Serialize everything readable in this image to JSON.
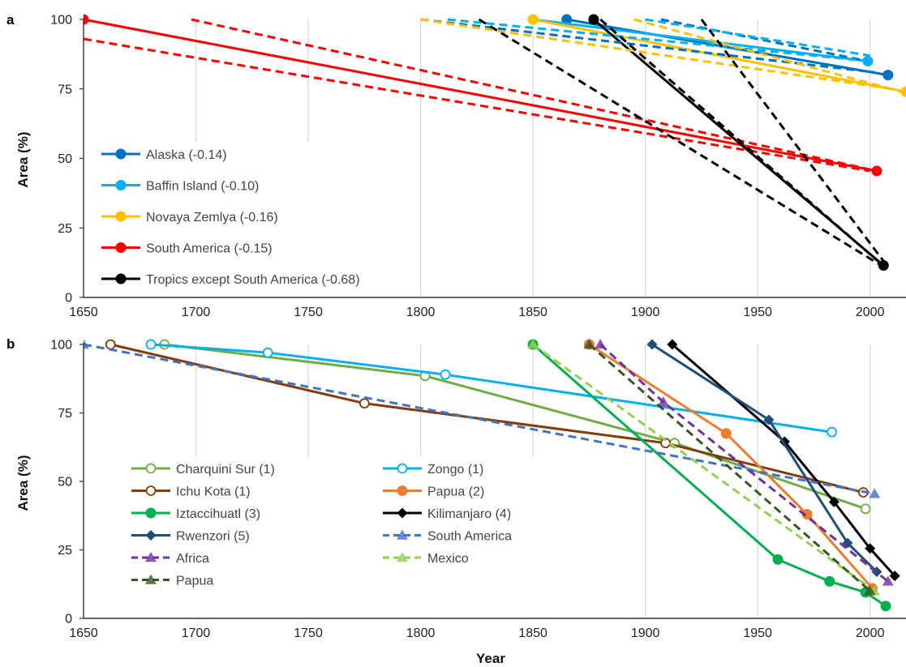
{
  "chart_data": [
    {
      "type": "line",
      "panel_label": "a",
      "ylabel": "Area (%)",
      "xlabel": "",
      "xlim": [
        1650,
        2016
      ],
      "ylim": [
        0,
        100
      ],
      "x_ticks": [
        "1650",
        "1700",
        "1750",
        "1800",
        "1850",
        "1900",
        "1950",
        "2000"
      ],
      "y_ticks": [
        "0",
        "25",
        "50",
        "75",
        "100"
      ],
      "grid": "vertical",
      "legend_placement": "left",
      "series": [
        {
          "name": "Alaska (-0.14)",
          "color": "#0070C0",
          "style": "solid",
          "marker": "circle-filled",
          "legend": true,
          "points": [
            [
              1865,
              100
            ],
            [
              2008,
              80
            ]
          ]
        },
        {
          "name": "Baffin Island (-0.10)",
          "color": "#00B0F0",
          "style": "solid",
          "marker": "circle-filled",
          "legend": true,
          "points": [
            [
              1850,
              100
            ],
            [
              1999,
              85
            ]
          ]
        },
        {
          "name": "Novaya Zemlya (-0.16)",
          "color": "#FFC000",
          "style": "solid",
          "marker": "circle-filled",
          "legend": true,
          "points": [
            [
              1850,
              100
            ],
            [
              2016,
              74
            ]
          ]
        },
        {
          "name": "South America (-0.15)",
          "color": "#FF0000",
          "style": "solid",
          "marker": "circle-filled",
          "legend": true,
          "points": [
            [
              1650,
              100
            ],
            [
              2003,
              45.5
            ]
          ]
        },
        {
          "name": "Tropics except South America (-0.68)",
          "color": "#000000",
          "style": "solid",
          "marker": "circle-filled",
          "legend": true,
          "points": [
            [
              1877,
              100
            ],
            [
              2006,
              11.5
            ]
          ]
        },
        {
          "color": "#0070C0",
          "style": "dashed",
          "marker": "none",
          "legend": false,
          "points": [
            [
              1800,
              100
            ],
            [
              2002,
              81
            ]
          ]
        },
        {
          "color": "#0070C0",
          "style": "dashed",
          "marker": "none",
          "legend": false,
          "points": [
            [
              1907,
              100
            ],
            [
              1999,
              85
            ]
          ]
        },
        {
          "color": "#00B0F0",
          "style": "dashed",
          "marker": "none",
          "legend": false,
          "points": [
            [
              1812,
              100
            ],
            [
              2000,
              85
            ]
          ]
        },
        {
          "color": "#00B0F0",
          "style": "dashed",
          "marker": "none",
          "legend": false,
          "points": [
            [
              1900,
              100
            ],
            [
              2000,
              87
            ]
          ]
        },
        {
          "color": "#FFC000",
          "style": "dashed",
          "marker": "none",
          "legend": false,
          "points": [
            [
              1800,
              100
            ],
            [
              2010,
              75
            ]
          ]
        },
        {
          "color": "#FFC000",
          "style": "dashed",
          "marker": "none",
          "legend": false,
          "points": [
            [
              1895,
              100
            ],
            [
              2014,
              74
            ]
          ]
        },
        {
          "color": "#FF0000",
          "style": "dashed",
          "marker": "none",
          "legend": false,
          "points": [
            [
              1650,
              93
            ],
            [
              2000,
              45.5
            ]
          ]
        },
        {
          "color": "#FF0000",
          "style": "dashed",
          "marker": "none",
          "legend": false,
          "points": [
            [
              1698,
              100
            ],
            [
              2003,
              45.5
            ]
          ]
        },
        {
          "color": "#000000",
          "style": "dashed",
          "marker": "none",
          "legend": false,
          "points": [
            [
              1826,
              100
            ],
            [
              2004,
              12
            ]
          ]
        },
        {
          "color": "#000000",
          "style": "dashed",
          "marker": "none",
          "legend": false,
          "points": [
            [
              1880,
              100
            ],
            [
              2005,
              12
            ]
          ]
        },
        {
          "color": "#000000",
          "style": "dashed",
          "marker": "none",
          "legend": false,
          "points": [
            [
              1925,
              100
            ],
            [
              2007,
              12
            ]
          ]
        }
      ]
    },
    {
      "type": "line",
      "panel_label": "b",
      "ylabel": "Area (%)",
      "xlabel": "Year",
      "xlim": [
        1650,
        2016
      ],
      "ylim": [
        0,
        100
      ],
      "x_ticks": [
        "1650",
        "1700",
        "1750",
        "1800",
        "1850",
        "1900",
        "1950",
        "2000"
      ],
      "y_ticks": [
        "0",
        "25",
        "50",
        "75",
        "100"
      ],
      "grid": "vertical",
      "legend_placement": "bottom-left",
      "series": [
        {
          "name": "Charquini Sur (1)",
          "color": "#70AD47",
          "style": "solid",
          "marker": "circle-open",
          "points": [
            [
              1686,
              100
            ],
            [
              1802,
              88.5
            ],
            [
              1913,
              64
            ],
            [
              1998,
              40
            ]
          ]
        },
        {
          "name": "Zongo (1)",
          "color": "#00B0F0",
          "style": "solid",
          "marker": "circle-open",
          "points": [
            [
              1680,
              100
            ],
            [
              1732,
              97
            ],
            [
              1811,
              89
            ],
            [
              1983,
              68
            ]
          ]
        },
        {
          "name": "Ichu Kota (1)",
          "color": "#843C0C",
          "style": "solid",
          "marker": "circle-open",
          "points": [
            [
              1662,
              100
            ],
            [
              1775,
              78.5
            ],
            [
              1909,
              64
            ],
            [
              1997,
              46
            ]
          ]
        },
        {
          "name": "Papua (2)",
          "color": "#ED7D31",
          "style": "solid",
          "marker": "circle-filled",
          "points": [
            [
              1875,
              100
            ],
            [
              1936,
              67.5
            ],
            [
              1972,
              38
            ],
            [
              2001,
              11
            ]
          ]
        },
        {
          "name": "Iztaccihuatl (3)",
          "color": "#00B050",
          "style": "solid",
          "marker": "circle-filled",
          "points": [
            [
              1850,
              100
            ],
            [
              1959,
              21.5
            ],
            [
              1982,
              13.5
            ],
            [
              1998,
              9.5
            ],
            [
              2007,
              4.5
            ]
          ]
        },
        {
          "name": "Kilimanjaro (4)",
          "color": "#000000",
          "style": "solid",
          "marker": "diamond",
          "points": [
            [
              1912,
              100
            ],
            [
              1962,
              64.5
            ],
            [
              1984,
              42.5
            ],
            [
              2000,
              25.5
            ],
            [
              2011,
              15.5
            ]
          ]
        },
        {
          "name": "Rwenzori (5)",
          "color": "#1F4E79",
          "style": "solid",
          "marker": "diamond",
          "points": [
            [
              1903,
              100
            ],
            [
              1955,
              72.5
            ],
            [
              1990,
              27.5
            ],
            [
              2003,
              17
            ]
          ]
        },
        {
          "name": "South America",
          "color": "#4472C4",
          "style": "dashed",
          "marker": "triangle",
          "points": [
            [
              1650,
              100
            ],
            [
              2002,
              45.5
            ]
          ]
        },
        {
          "name": "Africa",
          "color": "#7030A0",
          "style": "dashed",
          "marker": "triangle",
          "points": [
            [
              1880,
              100
            ],
            [
              1908,
              79
            ],
            [
              2008,
              13.5
            ]
          ]
        },
        {
          "name": "Mexico",
          "color": "#92D050",
          "style": "dashed",
          "marker": "triangle",
          "points": [
            [
              1850,
              100
            ],
            [
              2002,
              10
            ]
          ]
        },
        {
          "name": "Papua",
          "color": "#375623",
          "style": "dashed",
          "marker": "triangle",
          "points": [
            [
              1875,
              100
            ],
            [
              2000,
              10
            ]
          ]
        }
      ]
    }
  ]
}
